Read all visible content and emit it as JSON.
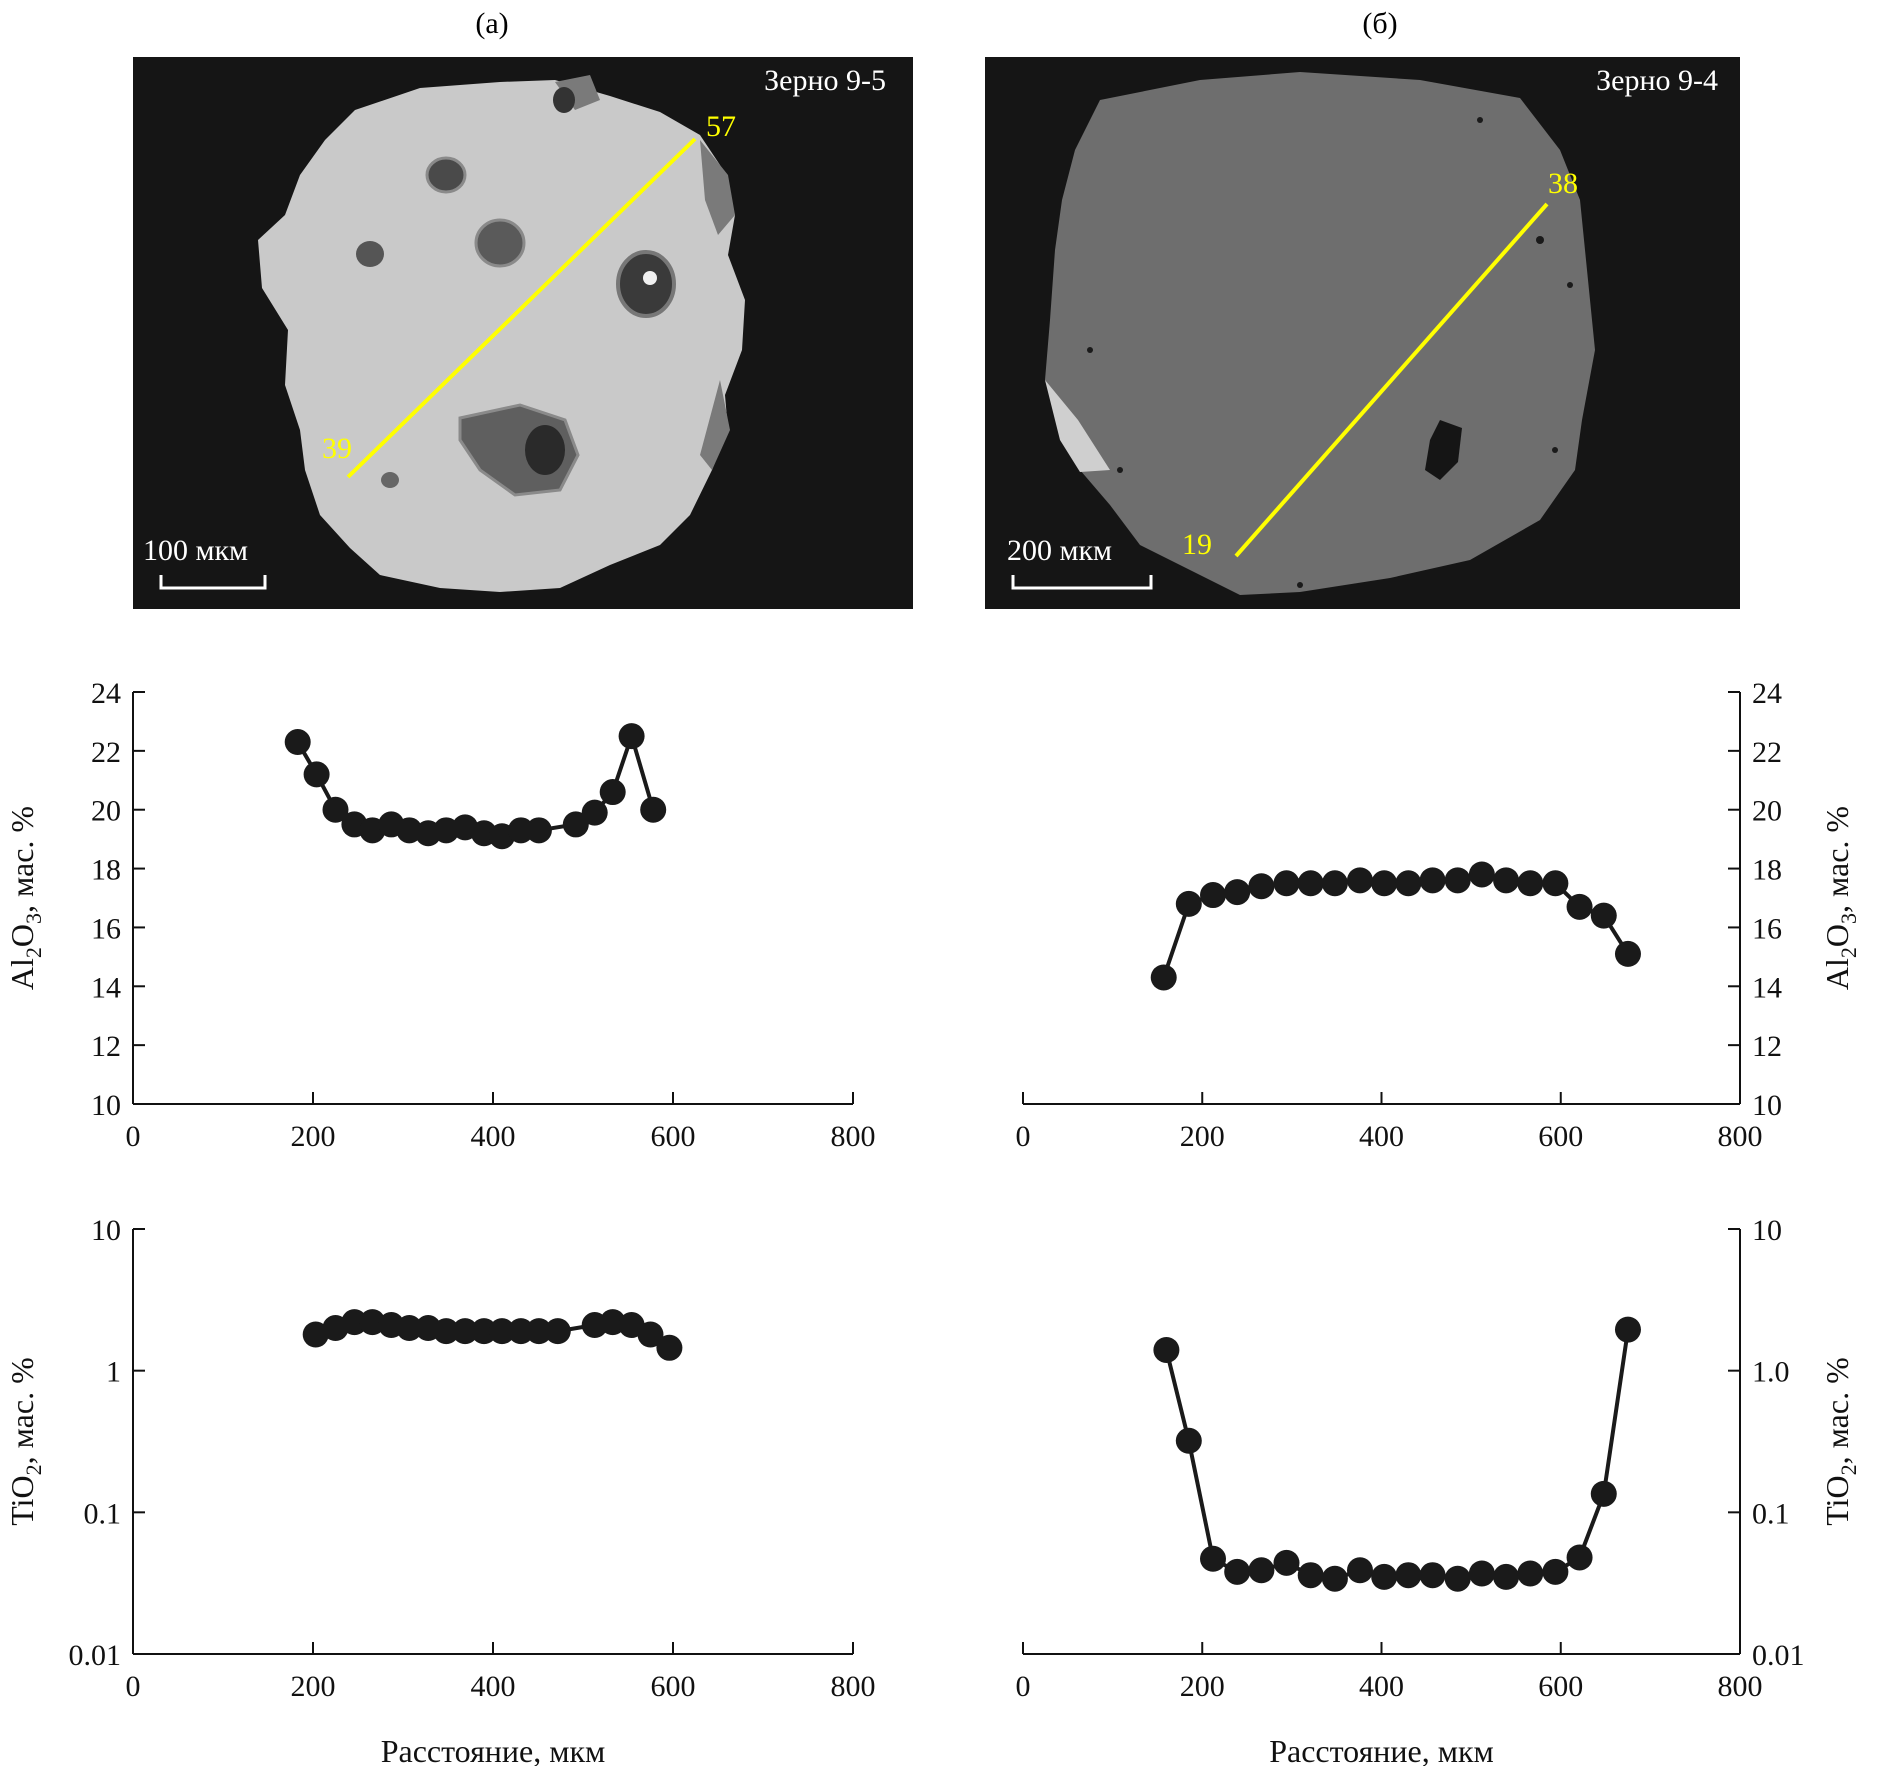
{
  "panels": {
    "a": {
      "label": "(а)",
      "grain": "Зерно 9-5",
      "line_start": "39",
      "line_end": "57",
      "scale": "100 мкм"
    },
    "b": {
      "label": "(б)",
      "grain": "Зерно 9-4",
      "line_start": "19",
      "line_end": "38",
      "scale": "200 мкм"
    }
  },
  "colors": {
    "profile_line": "#ffff00",
    "background": "#151515",
    "grain_a": "#c9c9c9",
    "grain_b": "#6e6e6e",
    "marker": "#1a1a1a"
  },
  "chart_data": [
    {
      "id": "al2o3_a",
      "type": "line",
      "xlabel": "",
      "ylabel_parts": [
        "Al",
        "2",
        "O",
        "3",
        ", мас. %"
      ],
      "xlim": [
        0,
        800
      ],
      "ylim": [
        10,
        24
      ],
      "yscale": "linear",
      "xticks": [
        "0",
        "200",
        "400",
        "600",
        "800"
      ],
      "yticks": [
        "10",
        "12",
        "14",
        "16",
        "18",
        "20",
        "22",
        "24"
      ],
      "ytick_values": [
        10,
        12,
        14,
        16,
        18,
        20,
        22,
        24
      ],
      "axis_side": "left",
      "series": [
        {
          "name": "Зерно 9-5",
          "x": [
            183,
            204,
            225,
            246,
            266,
            287,
            307,
            328,
            348,
            369,
            390,
            410,
            431,
            451,
            492,
            513,
            533,
            554,
            578
          ],
          "y": [
            22.3,
            21.2,
            20.0,
            19.5,
            19.3,
            19.5,
            19.3,
            19.2,
            19.3,
            19.4,
            19.2,
            19.1,
            19.3,
            19.3,
            19.5,
            19.9,
            20.6,
            22.5,
            20.0
          ]
        }
      ]
    },
    {
      "id": "al2o3_b",
      "type": "line",
      "xlabel": "",
      "ylabel_parts": [
        "Al",
        "2",
        "O",
        "3",
        ", мас. %"
      ],
      "xlim": [
        0,
        800
      ],
      "ylim": [
        10,
        24
      ],
      "yscale": "linear",
      "xticks": [
        "0",
        "200",
        "400",
        "600",
        "800"
      ],
      "yticks": [
        "10",
        "12",
        "14",
        "16",
        "18",
        "20",
        "22",
        "24"
      ],
      "ytick_values": [
        10,
        12,
        14,
        16,
        18,
        20,
        22,
        24
      ],
      "axis_side": "right",
      "series": [
        {
          "name": "Зерно 9-4",
          "x": [
            157,
            185,
            212,
            239,
            266,
            294,
            321,
            348,
            376,
            403,
            430,
            457,
            485,
            512,
            539,
            566,
            594,
            621,
            648,
            675
          ],
          "y": [
            14.3,
            16.8,
            17.1,
            17.2,
            17.4,
            17.5,
            17.5,
            17.5,
            17.6,
            17.5,
            17.5,
            17.6,
            17.6,
            17.8,
            17.6,
            17.5,
            17.5,
            16.7,
            16.4,
            15.1
          ]
        }
      ]
    },
    {
      "id": "tio2_a",
      "type": "line",
      "xlabel": "Расстояние, мкм",
      "ylabel_parts": [
        "TiO",
        "2",
        "",
        "",
        ", мас. %"
      ],
      "xlim": [
        0,
        800
      ],
      "ylim": [
        0.01,
        10
      ],
      "yscale": "log",
      "xticks": [
        "0",
        "200",
        "400",
        "600",
        "800"
      ],
      "yticks": [
        "0.01",
        "0.1",
        "1",
        "10"
      ],
      "ytick_values": [
        0.01,
        0.1,
        1,
        10
      ],
      "axis_side": "left",
      "series": [
        {
          "name": "Зерно 9-5",
          "x": [
            203,
            225,
            246,
            266,
            287,
            307,
            328,
            348,
            369,
            390,
            410,
            431,
            451,
            472,
            513,
            533,
            554,
            575,
            596
          ],
          "y": [
            1.8,
            2.0,
            2.2,
            2.2,
            2.1,
            2.0,
            2.0,
            1.9,
            1.9,
            1.9,
            1.9,
            1.9,
            1.9,
            1.9,
            2.1,
            2.2,
            2.1,
            1.8,
            1.45
          ]
        }
      ]
    },
    {
      "id": "tio2_b",
      "type": "line",
      "xlabel": "Расстояние, мкм",
      "ylabel_parts": [
        "TiO",
        "2",
        "",
        "",
        ", мас. %"
      ],
      "xlim": [
        0,
        800
      ],
      "ylim": [
        0.01,
        10
      ],
      "yscale": "log",
      "xticks": [
        "0",
        "200",
        "400",
        "600",
        "800"
      ],
      "yticks": [
        "0.01",
        "0.1",
        "1.0",
        "10"
      ],
      "ytick_values": [
        0.01,
        0.1,
        1,
        10
      ],
      "axis_side": "right",
      "series": [
        {
          "name": "Зерно 9-4",
          "x": [
            160,
            185,
            212,
            239,
            266,
            294,
            321,
            348,
            376,
            403,
            430,
            457,
            485,
            512,
            539,
            566,
            594,
            621,
            648,
            675
          ],
          "y": [
            1.4,
            0.32,
            0.047,
            0.038,
            0.039,
            0.044,
            0.036,
            0.034,
            0.039,
            0.035,
            0.036,
            0.036,
            0.034,
            0.037,
            0.035,
            0.037,
            0.038,
            0.048,
            0.135,
            1.95
          ]
        }
      ]
    }
  ]
}
